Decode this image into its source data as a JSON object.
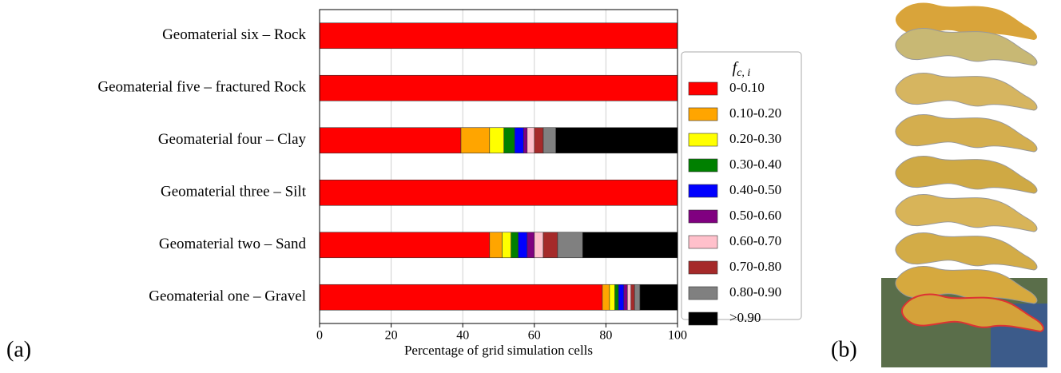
{
  "chart_data": {
    "type": "stacked-barh",
    "categories": [
      "Geomaterial six – Rock",
      "Geomaterial five – fractured Rock",
      "Geomaterial four – Clay",
      "Geomaterial three – Silt",
      "Geomaterial two – Sand",
      "Geomaterial one – Gravel"
    ],
    "series": [
      {
        "name": "0-0.10",
        "color": "#ff0000",
        "values": [
          100,
          100,
          39.5,
          100,
          47.5,
          79
        ]
      },
      {
        "name": "0.10-0.20",
        "color": "#ffa500",
        "values": [
          0,
          0,
          8,
          0,
          3.5,
          2
        ]
      },
      {
        "name": "0.20-0.30",
        "color": "#ffff00",
        "values": [
          0,
          0,
          4,
          0,
          2.5,
          1.5
        ]
      },
      {
        "name": "0.30-0.40",
        "color": "#008000",
        "values": [
          0,
          0,
          3,
          0,
          2,
          1
        ]
      },
      {
        "name": "0.40-0.50",
        "color": "#0000ff",
        "values": [
          0,
          0,
          2.5,
          0,
          2.5,
          1.5
        ]
      },
      {
        "name": "0.50-0.60",
        "color": "#800080",
        "values": [
          0,
          0,
          1,
          0,
          2,
          1
        ]
      },
      {
        "name": "0.60-0.70",
        "color": "#ffc0cb",
        "values": [
          0,
          0,
          2,
          0,
          2.5,
          1
        ]
      },
      {
        "name": "0.70-0.80",
        "color": "#a52a2a",
        "values": [
          0,
          0,
          2.5,
          0,
          4,
          1
        ]
      },
      {
        "name": "0.80-0.90",
        "color": "#808080",
        "values": [
          0,
          0,
          3.5,
          0,
          7,
          1.5
        ]
      },
      {
        "name": ">0.90",
        "color": "#000000",
        "values": [
          0,
          0,
          34,
          0,
          26.5,
          10.5
        ]
      }
    ],
    "xlabel": "Percentage of grid simulation cells",
    "xlim": [
      0,
      100
    ],
    "xticks": [
      0,
      20,
      40,
      60,
      80,
      100
    ],
    "grid": true,
    "legend_title": "f",
    "legend_title_sub": "c, i",
    "legend_position": "right",
    "panel_labels": [
      "(a)",
      "(b)"
    ]
  }
}
